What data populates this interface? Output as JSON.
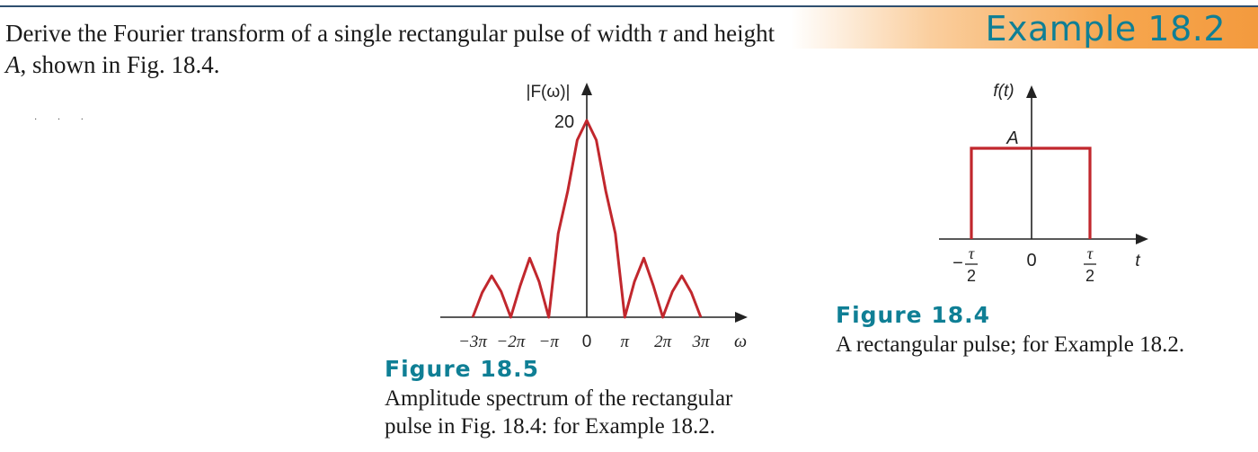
{
  "header": {
    "example_label": "Example 18.2"
  },
  "problem": {
    "part1": "Derive the Fourier transform of a single rectangular pulse of width ",
    "tau": "τ",
    "part2": " and height ",
    "height_symbol": "A",
    "part3": ", shown in Fig. 18.4."
  },
  "figure_18_5": {
    "title": "Figure 18.5",
    "caption_line1": "Amplitude spectrum of the rectangular",
    "caption_line2": "pulse in Fig. 18.4: for Example 18.2.",
    "y_axis_label": "|F(ω)|",
    "peak_label": "20",
    "x_axis_symbol": "ω",
    "x_tick_labels": [
      "−3π",
      "−2π",
      "−π",
      "0",
      "π",
      "2π",
      "3π"
    ],
    "curve_color": "#c1272d"
  },
  "figure_18_4": {
    "title": "Figure 18.4",
    "caption": "A rectangular pulse; for Example 18.2.",
    "y_axis_label": "f(t)",
    "height_label": "A",
    "x_axis_symbol": "t",
    "origin_label": "0",
    "left_edge": {
      "sign": "−",
      "numerator": "τ",
      "denominator": "2"
    },
    "right_edge": {
      "numerator": "τ",
      "denominator": "2"
    },
    "pulse_color": "#c1272d"
  },
  "chart_data": [
    {
      "type": "line",
      "title": "",
      "xlabel": "ω",
      "ylabel": "|F(ω)|",
      "x_ticks": [
        "−3π",
        "−2π",
        "−π",
        "0",
        "π",
        "2π",
        "3π"
      ],
      "y_ticks": [
        "20"
      ],
      "series": [
        {
          "x": [
            -9.42,
            -8.64,
            -7.85,
            -7.07,
            -6.28,
            -5.5,
            -4.71,
            -3.93,
            -3.14,
            -2.36,
            -1.57,
            -0.79,
            0,
            0.79,
            1.57,
            2.36,
            3.14,
            3.93,
            4.71,
            5.5,
            6.28,
            7.07,
            7.85,
            8.64,
            9.42
          ],
          "y": [
            0,
            2.5,
            4.2,
            2.6,
            0,
            3.2,
            6.0,
            3.6,
            0,
            8.5,
            12.8,
            18.0,
            20,
            18.0,
            12.8,
            8.5,
            0,
            3.6,
            6.0,
            3.2,
            0,
            2.6,
            4.2,
            2.5,
            0
          ]
        }
      ],
      "ylim": [
        0,
        20
      ],
      "grid": false
    },
    {
      "type": "line",
      "title": "",
      "xlabel": "t",
      "ylabel": "f(t)",
      "x_ticks": [
        "−τ/2",
        "0",
        "τ/2"
      ],
      "y_ticks": [
        "A"
      ],
      "series": [
        {
          "x": [
            "−τ/2",
            "−τ/2",
            "τ/2",
            "τ/2"
          ],
          "y": [
            "0",
            "A",
            "A",
            "0"
          ]
        }
      ],
      "grid": false
    }
  ]
}
